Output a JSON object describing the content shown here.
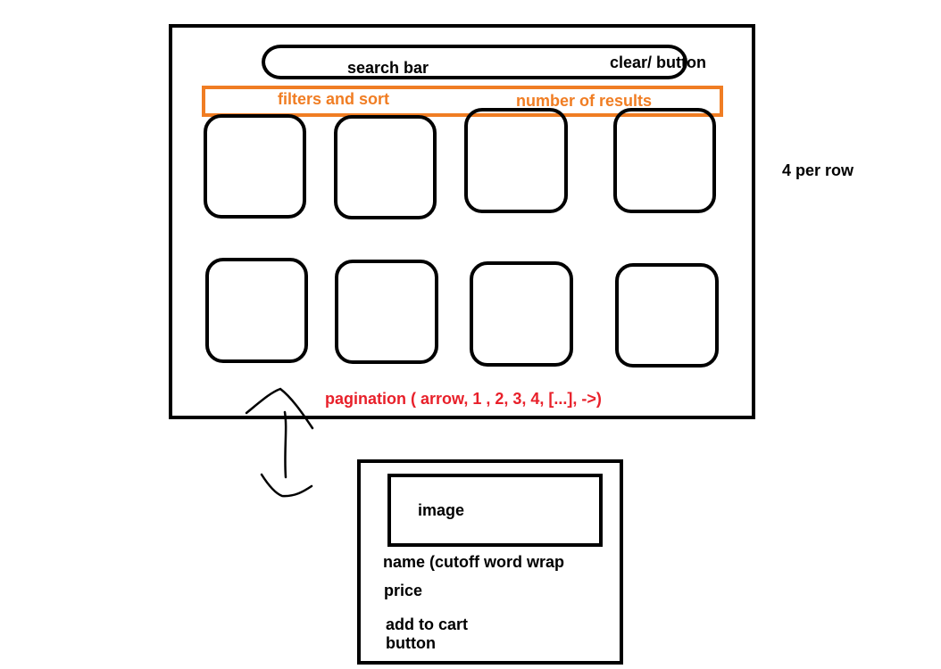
{
  "main_layout": {
    "search_bar_label": "search bar",
    "clear_button_label": "clear/ button",
    "filters_label": "filters and sort",
    "results_label": "number of results",
    "pagination_label": "pagination ( arrow, 1 , 2, 3, 4, [...], ->)",
    "tiles_per_row_note": "4 per row"
  },
  "product_card": {
    "image_label": "image",
    "name_label": "name (cutoff word wrap",
    "price_label": "price",
    "add_to_cart_line1": "add to cart",
    "add_to_cart_line2": "button"
  },
  "colors": {
    "outline": "#000000",
    "filter_bar": "#f07d23",
    "pagination": "#e8202a"
  }
}
